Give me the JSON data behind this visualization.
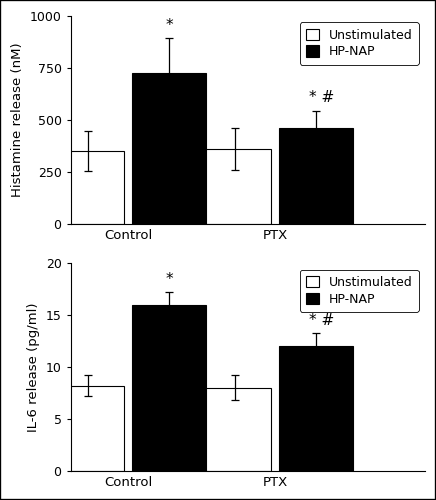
{
  "top_panel": {
    "ylabel": "Histamine release (nM)",
    "ylim": [
      0,
      1000
    ],
    "yticks": [
      0,
      250,
      500,
      750,
      1000
    ],
    "groups": [
      "Control",
      "PTX"
    ],
    "bar_values": {
      "unstimulated": [
        350,
        360
      ],
      "hp_nap": [
        725,
        460
      ]
    },
    "bar_errors": {
      "unstimulated": [
        95,
        100
      ],
      "hp_nap": [
        170,
        85
      ]
    },
    "annot_control_hpnap": "*",
    "annot_ptx_hpnap": "* #"
  },
  "bottom_panel": {
    "ylabel": "IL-6 release (pg/ml)",
    "ylim": [
      0,
      20
    ],
    "yticks": [
      0,
      5,
      10,
      15,
      20
    ],
    "groups": [
      "Control",
      "PTX"
    ],
    "bar_values": {
      "unstimulated": [
        8.2,
        8.0
      ],
      "hp_nap": [
        16.0,
        12.0
      ]
    },
    "bar_errors": {
      "unstimulated": [
        1.0,
        1.2
      ],
      "hp_nap": [
        1.2,
        1.3
      ]
    },
    "annot_control_hpnap": "*",
    "annot_ptx_hpnap": "* #"
  },
  "legend_labels": [
    "Unstimulated",
    "HP-NAP"
  ],
  "bar_colors": [
    "white",
    "black"
  ],
  "bar_edgecolor": "black",
  "bar_width": 0.28,
  "group_centers": [
    0.22,
    0.78
  ],
  "xlim": [
    0,
    1.35
  ],
  "annotation_fontsize": 11,
  "label_fontsize": 9.5,
  "tick_fontsize": 9,
  "legend_fontsize": 9,
  "background_color": "white",
  "outer_border_color": "black"
}
